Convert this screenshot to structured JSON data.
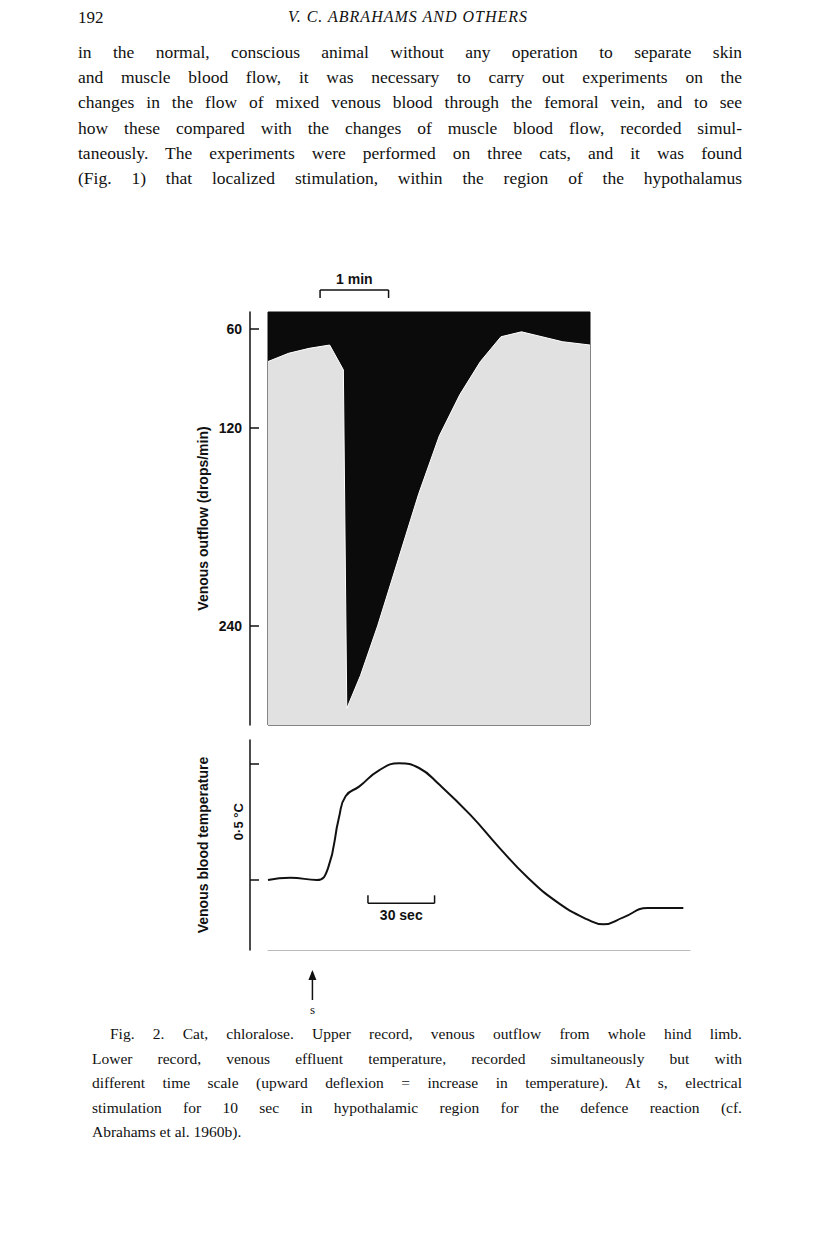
{
  "header": {
    "page": "192",
    "running_title": "V. C. ABRAHAMS AND OTHERS"
  },
  "body_lines": [
    "in the normal, conscious animal without any operation to separate skin",
    "and muscle blood flow, it was necessary to carry out experiments on the",
    "changes in the flow of mixed venous blood through the femoral vein, and to see",
    "how these compared with the changes of muscle blood flow, recorded simul-",
    "taneously. The experiments were performed on three cats, and it was found",
    "(Fig. 1) that localized stimulation, within the region of the hypothalamus"
  ],
  "chart_data": [
    {
      "type": "area",
      "ylabel": "Venous outflow (drops/min)",
      "x": [
        0,
        0.3,
        0.6,
        0.9,
        1.1,
        1.15,
        1.35,
        1.6,
        1.9,
        2.2,
        2.5,
        2.8,
        3.1,
        3.4,
        3.7,
        4.0,
        4.3,
        4.7
      ],
      "values": [
        80,
        75,
        72,
        70,
        85,
        290,
        270,
        240,
        200,
        160,
        125,
        100,
        80,
        65,
        62,
        65,
        68,
        70
      ],
      "color": "#ffffff",
      "xlim": [
        0,
        4.7
      ],
      "ylim": [
        50,
        300
      ],
      "yticks": [
        60,
        120,
        240
      ],
      "tick_labels": "y",
      "x_scale_bar": {
        "label": "1 min",
        "start": 0.76,
        "length": 1
      }
    },
    {
      "type": "line",
      "ylabel": "Venous blood temperature",
      "x": [
        0,
        10,
        22,
        27,
        32,
        35,
        41,
        50,
        59,
        68,
        77,
        91,
        104,
        117,
        131,
        144,
        151,
        160,
        171,
        187
      ],
      "values": [
        0,
        0.01,
        0,
        0.05,
        0.27,
        0.36,
        0.4,
        0.47,
        0.5,
        0.48,
        0.41,
        0.28,
        0.14,
        0.01,
        -0.1,
        -0.17,
        -0.19,
        -0.16,
        -0.12,
        -0.12
      ],
      "color": "#111111",
      "xlim": [
        0,
        190
      ],
      "ylim": [
        -0.3,
        0.6
      ],
      "yticks": [
        0,
        0.5
      ],
      "tick_labels": false,
      "y_scale_label": "0·5 °C",
      "x_scale_bar": {
        "label": "30 sec",
        "start": 45,
        "length": 30,
        "at": -0.1
      },
      "stimulus": {
        "label": "s",
        "x": 20
      }
    }
  ],
  "caption_lines": [
    "Fig. 2. Cat, chloralose. Upper record, venous outflow from whole hind limb.",
    "Lower record, venous effluent temperature, recorded simultaneously but with",
    "different time scale (upward deflexion = increase in temperature). At s, electrical",
    "stimulation for 10 sec in hypothalamic region for the defence reaction (cf.",
    "Abrahams et al. 1960b)."
  ]
}
